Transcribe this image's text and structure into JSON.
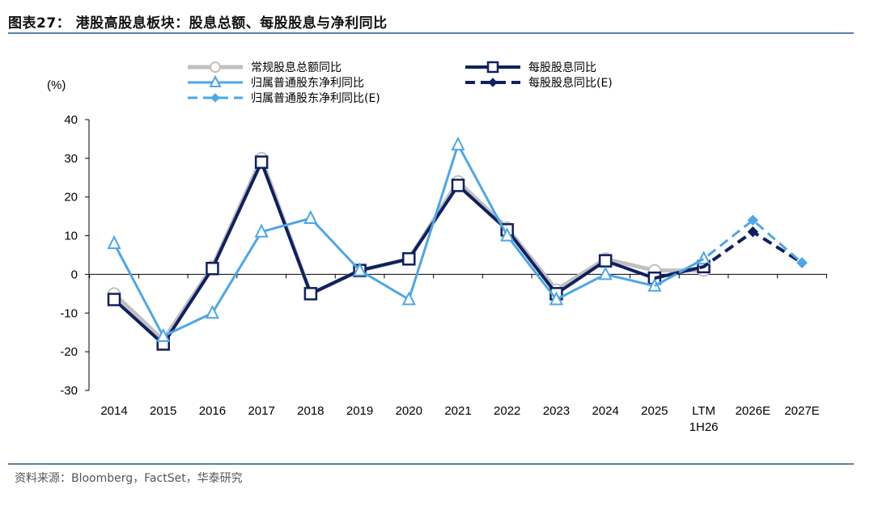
{
  "header": {
    "title": "图表27：  港股高股息板块：股息总额、每股股息与净利同比"
  },
  "footer": {
    "source": "资料来源：Bloomberg，FactSet，华泰研究"
  },
  "chart_data": {
    "type": "line",
    "ylabel": "(%)",
    "ylim": [
      -30,
      40
    ],
    "yticks": [
      -30,
      -20,
      -10,
      0,
      10,
      20,
      30,
      40
    ],
    "categories": [
      "2014",
      "2015",
      "2016",
      "2017",
      "2018",
      "2019",
      "2020",
      "2021",
      "2022",
      "2023",
      "2024",
      "2025",
      "LTM 1H26",
      "2026E",
      "2027E"
    ],
    "category_labels": [
      [
        "2014"
      ],
      [
        "2015"
      ],
      [
        "2016"
      ],
      [
        "2017"
      ],
      [
        "2018"
      ],
      [
        "2019"
      ],
      [
        "2020"
      ],
      [
        "2021"
      ],
      [
        "2022"
      ],
      [
        "2023"
      ],
      [
        "2024"
      ],
      [
        "2025"
      ],
      [
        "LTM",
        "1H26"
      ],
      [
        "2026E"
      ],
      [
        "2027E"
      ]
    ],
    "grid": false,
    "legend_position": "top",
    "series": [
      {
        "name": "常规股息总额同比",
        "color": "#c0c0c0",
        "style": "solid",
        "marker": "circle",
        "values": [
          -5,
          -17,
          2,
          30,
          -5,
          1,
          4,
          24,
          12,
          -4,
          4,
          1,
          1,
          null,
          null
        ]
      },
      {
        "name": "每股股息同比",
        "color": "#0f2060",
        "style": "solid",
        "marker": "square",
        "values": [
          -6.5,
          -18,
          1.5,
          29,
          -5,
          1,
          4,
          23,
          11.5,
          -5,
          3.5,
          -1,
          2,
          null,
          null
        ]
      },
      {
        "name": "归属普通股东净利同比",
        "color": "#4da6e8",
        "style": "solid",
        "marker": "triangle",
        "values": [
          8,
          -16,
          -10,
          11,
          14.5,
          1,
          -6.5,
          33.5,
          10,
          -6.5,
          0,
          -3,
          4,
          null,
          null
        ]
      },
      {
        "name": "每股股息同比(E)",
        "color": "#0f2060",
        "style": "dashed",
        "marker": "diamond",
        "values": [
          null,
          null,
          null,
          null,
          null,
          null,
          null,
          null,
          null,
          null,
          null,
          -1,
          2,
          11,
          3
        ]
      },
      {
        "name": "归属普通股东净利同比(E)",
        "color": "#4da6e8",
        "style": "dashed",
        "marker": "diamond",
        "values": [
          null,
          null,
          null,
          null,
          null,
          null,
          null,
          null,
          null,
          null,
          null,
          -3,
          4,
          14,
          3
        ]
      }
    ]
  }
}
